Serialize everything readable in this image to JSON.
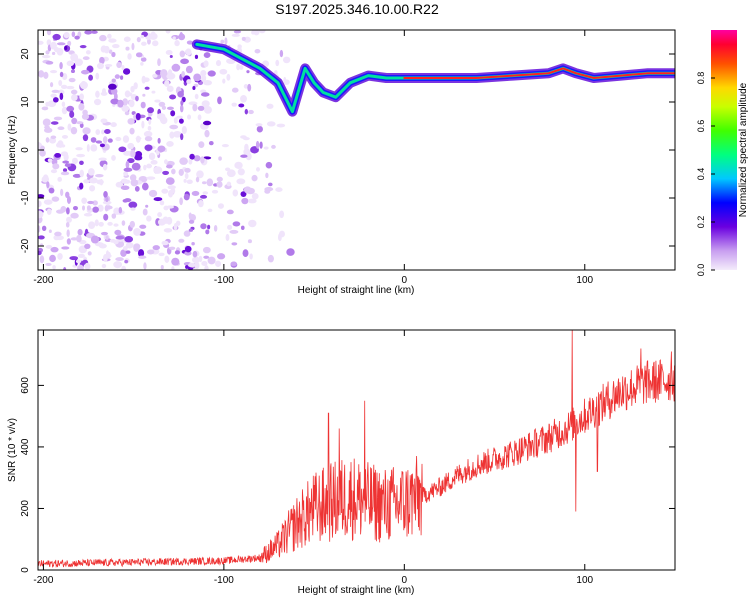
{
  "title": "S197.2025.346.10.00.R22",
  "colors": {
    "snr_line": "#ee3333",
    "axis": "#000000"
  },
  "chart_data": [
    {
      "type": "heatmap",
      "xlabel": "Height of straight line (km)",
      "ylabel": "Frequency (Hz)",
      "xlim": [
        -203,
        150
      ],
      "ylim": [
        -25,
        25
      ],
      "x_ticks": [
        -200,
        -100,
        0,
        100
      ],
      "y_ticks": [
        -20,
        -10,
        0,
        10,
        20
      ],
      "colorbar": {
        "label": "Normalized spectral amplitude",
        "range": [
          0,
          1
        ],
        "ticks": [
          0.0,
          0.2,
          0.4,
          0.6,
          0.8
        ]
      },
      "ridge": [
        {
          "x": -115,
          "y": 22
        },
        {
          "x": -100,
          "y": 21
        },
        {
          "x": -90,
          "y": 19
        },
        {
          "x": -80,
          "y": 17
        },
        {
          "x": -70,
          "y": 14
        },
        {
          "x": -62,
          "y": 8
        },
        {
          "x": -55,
          "y": 17
        },
        {
          "x": -50,
          "y": 14
        },
        {
          "x": -45,
          "y": 12
        },
        {
          "x": -38,
          "y": 11
        },
        {
          "x": -30,
          "y": 14
        },
        {
          "x": -20,
          "y": 15.5
        },
        {
          "x": -10,
          "y": 15
        },
        {
          "x": 0,
          "y": 15
        },
        {
          "x": 20,
          "y": 15
        },
        {
          "x": 40,
          "y": 15
        },
        {
          "x": 60,
          "y": 15.5
        },
        {
          "x": 80,
          "y": 16
        },
        {
          "x": 88,
          "y": 17
        },
        {
          "x": 95,
          "y": 16
        },
        {
          "x": 105,
          "y": 15
        },
        {
          "x": 120,
          "y": 15.5
        },
        {
          "x": 135,
          "y": 16
        },
        {
          "x": 150,
          "y": 16
        }
      ]
    },
    {
      "type": "line",
      "xlabel": "Height of straight line (km)",
      "ylabel": "SNR (10 * v/v)",
      "xlim": [
        -203,
        150
      ],
      "ylim": [
        0,
        780
      ],
      "x_ticks": [
        -200,
        -100,
        0,
        100
      ],
      "y_ticks": [
        0,
        200,
        400,
        600
      ],
      "series": [
        {
          "envelope": [
            {
              "x": -203,
              "y": 20
            },
            {
              "x": -150,
              "y": 25
            },
            {
              "x": -100,
              "y": 30
            },
            {
              "x": -80,
              "y": 40
            },
            {
              "x": -70,
              "y": 80
            },
            {
              "x": -60,
              "y": 150
            },
            {
              "x": -50,
              "y": 200
            },
            {
              "x": -40,
              "y": 220
            },
            {
              "x": -30,
              "y": 240
            },
            {
              "x": -20,
              "y": 220
            },
            {
              "x": -10,
              "y": 210
            },
            {
              "x": 0,
              "y": 220
            },
            {
              "x": 10,
              "y": 240
            },
            {
              "x": 20,
              "y": 270
            },
            {
              "x": 30,
              "y": 310
            },
            {
              "x": 40,
              "y": 340
            },
            {
              "x": 60,
              "y": 380
            },
            {
              "x": 80,
              "y": 430
            },
            {
              "x": 90,
              "y": 460
            },
            {
              "x": 100,
              "y": 500
            },
            {
              "x": 110,
              "y": 540
            },
            {
              "x": 120,
              "y": 580
            },
            {
              "x": 135,
              "y": 610
            },
            {
              "x": 150,
              "y": 620
            }
          ],
          "spikes": [
            {
              "x": -42,
              "y": 510
            },
            {
              "x": -36,
              "y": 460
            },
            {
              "x": -22,
              "y": 550
            },
            {
              "x": -30,
              "y": 320
            },
            {
              "x": 93,
              "y": 780
            },
            {
              "x": 95,
              "y": 190
            },
            {
              "x": 107,
              "y": 320
            },
            {
              "x": 131,
              "y": 720
            },
            {
              "x": 148,
              "y": 710
            }
          ]
        }
      ]
    }
  ]
}
